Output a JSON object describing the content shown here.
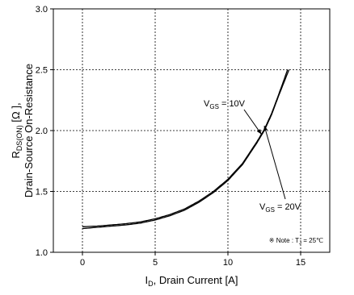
{
  "chart_data": {
    "type": "line",
    "xlabel_parts": {
      "main": "I",
      "sub": "D",
      "rest": ", Drain Current [A]"
    },
    "ylabel_line1_parts": {
      "main": "R",
      "sub": "DS(ON)",
      "rest": " [Ω ],",
      "rest_prefix": " [",
      "omega": "Ω",
      "rest_suffix": " ],"
    },
    "ylabel_line2": "Drain-Source On-Resistance",
    "xlim": [
      -2,
      17
    ],
    "ylim": [
      1.0,
      3.0
    ],
    "x_ticks": [
      0,
      5,
      10,
      15
    ],
    "x_tick_labels": [
      "0",
      "5",
      "10",
      "15"
    ],
    "y_ticks": [
      1.0,
      1.5,
      2.0,
      2.5,
      3.0
    ],
    "y_tick_labels": [
      "1.0",
      "1.5",
      "2.0",
      "2.5",
      "3.0"
    ],
    "grid": true,
    "series": [
      {
        "key": "vgs10",
        "x": [
          0,
          1,
          2,
          3,
          4,
          5,
          6,
          7,
          8,
          9,
          10,
          11,
          12,
          12.5,
          13,
          13.5,
          14.1
        ],
        "y": [
          1.21,
          1.215,
          1.225,
          1.235,
          1.25,
          1.275,
          1.31,
          1.355,
          1.42,
          1.5,
          1.6,
          1.73,
          1.91,
          2.01,
          2.14,
          2.3,
          2.5
        ]
      },
      {
        "key": "vgs20",
        "x": [
          0,
          1,
          2,
          3,
          4,
          5,
          6,
          7,
          8,
          9,
          10,
          11,
          12,
          12.5,
          13,
          13.5,
          14.2
        ],
        "y": [
          1.195,
          1.205,
          1.215,
          1.225,
          1.24,
          1.265,
          1.3,
          1.345,
          1.41,
          1.49,
          1.59,
          1.72,
          1.9,
          2.0,
          2.13,
          2.29,
          2.5
        ]
      }
    ],
    "annotations": [
      {
        "id": "vgs10",
        "main": "V",
        "sub": "GS",
        "rest": " = 10V",
        "points_to": [
          12.3,
          1.97
        ]
      },
      {
        "id": "vgs20",
        "main": "V",
        "sub": "GS",
        "rest": " = 20V",
        "points_to": [
          12.5,
          2.04
        ]
      }
    ],
    "note": {
      "prefix": "※ Note : T",
      "sub": "J",
      "rest": " = 25℃"
    }
  }
}
